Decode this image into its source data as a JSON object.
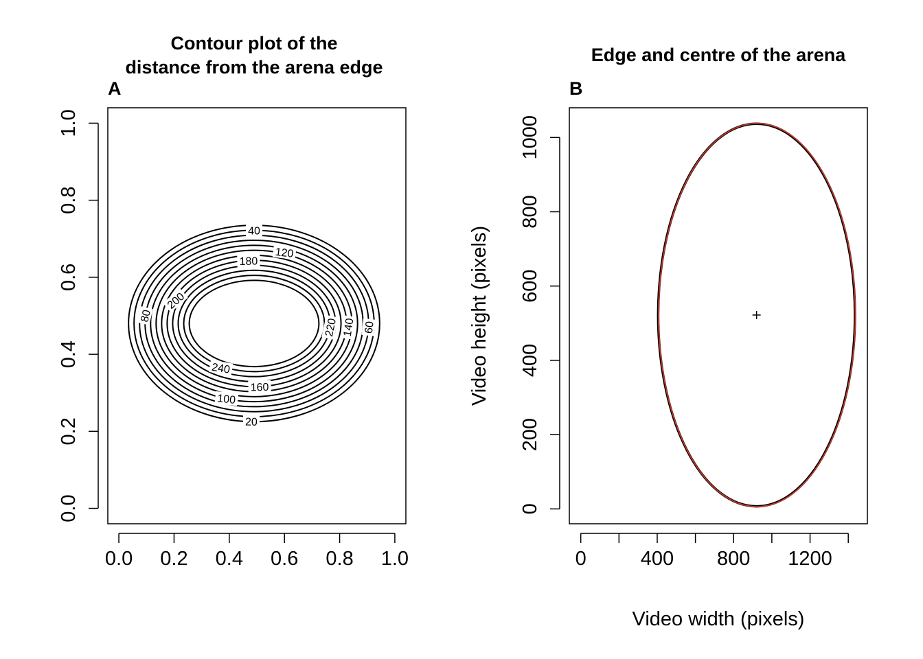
{
  "colors": {
    "ink": "#000000",
    "fitted_edge": "#c0392b",
    "background": "#ffffff"
  },
  "chart_data": [
    {
      "type": "contour",
      "panel_label": "A",
      "title_lines": [
        "Contour plot of the",
        "distance from the arena edge"
      ],
      "xlabel": "",
      "ylabel": "",
      "xlim": [
        -0.04,
        1.04
      ],
      "ylim": [
        -0.04,
        1.04
      ],
      "xticks": [
        0.0,
        0.2,
        0.4,
        0.6,
        0.8,
        1.0
      ],
      "xtick_labels": [
        "0.0",
        "0.2",
        "0.4",
        "0.6",
        "0.8",
        "1.0"
      ],
      "yticks": [
        0.0,
        0.2,
        0.4,
        0.6,
        0.8,
        1.0
      ],
      "ytick_labels": [
        "0.0",
        "0.2",
        "0.4",
        "0.6",
        "0.8",
        "1.0"
      ],
      "centre": [
        0.49,
        0.48
      ],
      "contours": [
        {
          "level": 20,
          "semi_x": 0.455,
          "semi_y": 0.255,
          "label": "20",
          "label_x": 0.48,
          "label_y": 0.226
        },
        {
          "level": 40,
          "semi_x": 0.435,
          "semi_y": 0.242,
          "label": "40",
          "label_x": 0.49,
          "label_y": 0.722
        },
        {
          "level": 60,
          "semi_x": 0.415,
          "semi_y": 0.229,
          "label": "60",
          "label_x": 0.905,
          "label_y": 0.47
        },
        {
          "level": 80,
          "semi_x": 0.395,
          "semi_y": 0.216,
          "label": "80",
          "label_x": 0.095,
          "label_y": 0.5
        },
        {
          "level": 100,
          "semi_x": 0.375,
          "semi_y": 0.203,
          "label": "100",
          "label_x": 0.39,
          "label_y": 0.285
        },
        {
          "level": 120,
          "semi_x": 0.355,
          "semi_y": 0.19,
          "label": "120",
          "label_x": 0.6,
          "label_y": 0.665
        },
        {
          "level": 140,
          "semi_x": 0.335,
          "semi_y": 0.177,
          "label": "140",
          "label_x": 0.83,
          "label_y": 0.47
        },
        {
          "level": 160,
          "semi_x": 0.315,
          "semi_y": 0.164,
          "label": "160",
          "label_x": 0.51,
          "label_y": 0.316
        },
        {
          "level": 180,
          "semi_x": 0.295,
          "semi_y": 0.151,
          "label": "180",
          "label_x": 0.47,
          "label_y": 0.643
        },
        {
          "level": 200,
          "semi_x": 0.275,
          "semi_y": 0.138,
          "label": "200",
          "label_x": 0.205,
          "label_y": 0.54
        },
        {
          "level": 220,
          "semi_x": 0.255,
          "semi_y": 0.125,
          "label": "220",
          "label_x": 0.765,
          "label_y": 0.47
        },
        {
          "level": 240,
          "semi_x": 0.235,
          "semi_y": 0.112,
          "label": "240",
          "label_x": 0.37,
          "label_y": 0.365
        }
      ]
    },
    {
      "type": "scatter",
      "panel_label": "B",
      "title": "Edge and centre of the arena",
      "xlabel": "Video width (pixels)",
      "ylabel": "Video height (pixels)",
      "xlim": [
        -60,
        1500
      ],
      "ylim": [
        -40,
        1080
      ],
      "xticks": [
        0,
        200,
        400,
        600,
        800,
        1000,
        1200,
        1400
      ],
      "xtick_labels": [
        "0",
        "",
        "400",
        "",
        "800",
        "",
        "1200",
        ""
      ],
      "yticks": [
        0,
        200,
        400,
        600,
        800,
        1000
      ],
      "ytick_labels": [
        "0",
        "200",
        "400",
        "600",
        "800",
        "1000"
      ],
      "series": [
        {
          "name": "",
          "kind": "edge-points",
          "cx": 920,
          "cy": 522,
          "rx": 515,
          "ry": 515,
          "color": "#000000"
        },
        {
          "name": "",
          "kind": "fitted-ellipse",
          "cx": 922,
          "cy": 522,
          "rx": 515,
          "ry": 516,
          "color": "#c0392b"
        },
        {
          "name": "",
          "kind": "centre",
          "x": 920,
          "y": 522,
          "marker": "+"
        }
      ]
    }
  ]
}
